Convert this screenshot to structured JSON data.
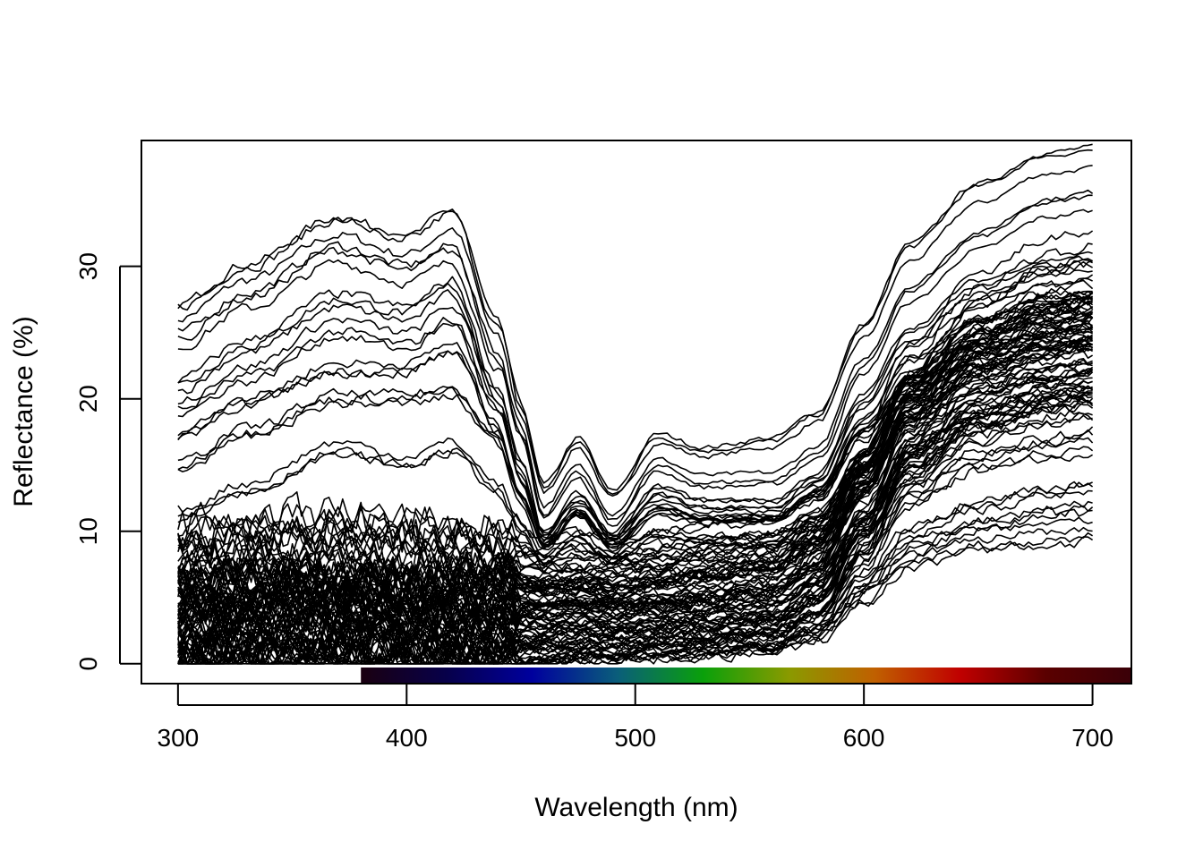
{
  "chart_data": {
    "type": "line",
    "title": "",
    "xlabel": "Wavelength (nm)",
    "ylabel": "Reflectance (%)",
    "xlim": [
      284,
      717
    ],
    "ylim": [
      -1.5,
      39.5
    ],
    "x_ticks": [
      300,
      400,
      500,
      600,
      700
    ],
    "y_ticks": [
      0,
      10,
      20,
      30
    ],
    "x_tick_labels": [
      "300",
      "400",
      "500",
      "600",
      "700"
    ],
    "y_tick_labels": [
      "0",
      "10",
      "20",
      "30"
    ],
    "x_range": [
      300,
      700
    ],
    "grid": false,
    "legend": "none",
    "line_color": "#000000",
    "spectrum_bar": {
      "range_nm": [
        380,
        717
      ],
      "colors": [
        "#1a0010",
        "#07004a",
        "#00009e",
        "#0a5e7a",
        "#0aa00a",
        "#8a9a00",
        "#c06000",
        "#c00000",
        "#5a0000",
        "#3a0008"
      ]
    },
    "series_groups": [
      {
        "description_anchor_x": [
          300,
          330,
          370,
          400,
          420,
          440,
          450,
          460,
          475,
          490,
          510,
          530,
          560,
          580,
          600,
          620,
          650,
          680,
          700
        ],
        "profile": "high-UV",
        "base_values": [
          [
            26.5,
            29.5,
            33.0,
            31.5,
            33.5,
            25.0,
            19.0,
            13.0,
            16.5,
            12.5,
            16.8,
            15.8,
            16.5,
            18.5,
            25.0,
            31.0,
            35.5,
            37.8,
            38.2
          ],
          [
            24.5,
            27.5,
            31.0,
            29.5,
            31.0,
            23.0,
            17.5,
            11.5,
            14.5,
            11.0,
            15.0,
            13.8,
            14.0,
            16.0,
            22.5,
            28.0,
            32.0,
            34.5,
            35.0
          ],
          [
            21.5,
            24.5,
            28.0,
            27.0,
            29.0,
            21.0,
            15.5,
            10.0,
            13.0,
            10.0,
            13.5,
            12.5,
            12.5,
            14.5,
            20.5,
            25.5,
            29.0,
            30.5,
            31.0
          ],
          [
            19.5,
            22.0,
            25.5,
            24.5,
            26.5,
            19.5,
            14.0,
            9.5,
            12.0,
            9.5,
            12.5,
            11.5,
            11.5,
            13.5,
            19.0,
            23.5,
            26.5,
            28.0,
            28.5
          ],
          [
            17.5,
            20.0,
            22.5,
            22.5,
            24.0,
            18.0,
            13.0,
            9.0,
            11.5,
            9.0,
            12.0,
            11.0,
            11.0,
            13.0,
            18.0,
            22.0,
            24.5,
            25.5,
            26.0
          ],
          [
            14.5,
            17.0,
            19.5,
            19.5,
            20.0,
            16.5,
            12.0,
            8.5,
            11.0,
            8.5,
            11.0,
            10.5,
            10.5,
            12.5,
            17.0,
            20.5,
            22.5,
            23.5,
            24.0
          ],
          [
            11.5,
            13.5,
            16.5,
            15.5,
            16.5,
            13.5,
            10.5,
            8.0,
            10.0,
            8.0,
            10.0,
            9.5,
            9.5,
            11.5,
            15.5,
            19.0,
            21.0,
            22.0,
            22.5
          ]
        ]
      },
      {
        "profile": "flat-UV",
        "base_values": [
          [
            9.5,
            10.0,
            10.5,
            10.0,
            9.5,
            9.5,
            9.0,
            8.5,
            9.0,
            8.5,
            9.0,
            9.5,
            10.0,
            11.5,
            16.0,
            22.0,
            27.0,
            29.5,
            30.0
          ],
          [
            9.0,
            9.5,
            10.0,
            9.5,
            9.0,
            9.0,
            8.5,
            8.0,
            8.5,
            8.0,
            8.5,
            9.0,
            9.5,
            11.0,
            15.5,
            21.0,
            26.0,
            28.5,
            29.0
          ],
          [
            7.5,
            8.0,
            8.0,
            7.5,
            7.5,
            7.5,
            7.0,
            7.0,
            7.0,
            7.0,
            7.5,
            8.0,
            8.5,
            10.5,
            15.0,
            20.5,
            25.0,
            27.0,
            27.5
          ],
          [
            6.5,
            6.5,
            6.8,
            6.5,
            6.5,
            6.5,
            6.0,
            6.0,
            6.2,
            6.0,
            6.5,
            7.0,
            7.5,
            9.5,
            14.5,
            20.0,
            24.0,
            26.0,
            26.5
          ],
          [
            6.0,
            6.2,
            6.5,
            6.0,
            6.0,
            6.0,
            5.8,
            5.5,
            5.8,
            5.5,
            6.0,
            6.5,
            7.0,
            9.0,
            14.0,
            19.5,
            23.5,
            25.0,
            25.5
          ],
          [
            5.5,
            5.5,
            5.8,
            5.5,
            5.5,
            5.5,
            5.2,
            5.0,
            5.2,
            5.0,
            5.5,
            6.0,
            6.5,
            8.5,
            13.5,
            19.0,
            22.5,
            24.0,
            24.5
          ],
          [
            5.0,
            5.0,
            5.2,
            5.0,
            5.0,
            5.0,
            4.8,
            4.8,
            5.0,
            4.8,
            5.0,
            5.5,
            6.0,
            8.0,
            13.0,
            18.5,
            22.0,
            23.5,
            24.0
          ],
          [
            4.5,
            4.6,
            4.8,
            4.5,
            4.5,
            4.5,
            4.4,
            4.2,
            4.5,
            4.3,
            4.5,
            5.0,
            5.5,
            7.5,
            12.5,
            18.0,
            21.5,
            23.0,
            23.5
          ],
          [
            4.0,
            4.2,
            4.5,
            4.2,
            4.0,
            4.0,
            4.0,
            4.0,
            4.2,
            4.0,
            4.2,
            4.5,
            5.0,
            7.0,
            12.0,
            17.5,
            21.0,
            22.5,
            23.0
          ],
          [
            3.5,
            3.8,
            4.0,
            3.8,
            3.6,
            3.6,
            3.6,
            3.5,
            3.8,
            3.6,
            3.8,
            4.0,
            4.5,
            6.5,
            11.5,
            17.0,
            20.5,
            22.0,
            22.5
          ],
          [
            3.0,
            3.2,
            3.5,
            3.2,
            3.2,
            3.2,
            3.2,
            3.2,
            3.4,
            3.2,
            3.4,
            3.6,
            4.0,
            6.0,
            11.0,
            16.5,
            20.0,
            21.5,
            22.0
          ],
          [
            2.5,
            2.8,
            3.0,
            2.8,
            2.8,
            2.8,
            2.8,
            2.8,
            3.0,
            2.8,
            3.0,
            3.2,
            3.6,
            5.5,
            10.5,
            16.0,
            19.5,
            21.0,
            21.5
          ],
          [
            2.0,
            2.2,
            2.5,
            2.2,
            2.2,
            2.2,
            2.2,
            2.2,
            2.4,
            2.2,
            2.5,
            2.8,
            3.2,
            5.0,
            10.0,
            15.5,
            19.0,
            20.5,
            21.0
          ],
          [
            1.5,
            1.8,
            2.0,
            1.8,
            1.8,
            1.8,
            1.8,
            1.8,
            2.0,
            1.8,
            2.0,
            2.4,
            2.8,
            4.5,
            9.5,
            15.0,
            18.5,
            20.0,
            20.5
          ],
          [
            1.0,
            1.2,
            1.5,
            1.2,
            1.2,
            1.2,
            1.2,
            1.4,
            1.6,
            1.5,
            1.8,
            2.0,
            2.4,
            4.0,
            9.0,
            14.5,
            18.0,
            19.5,
            20.0
          ],
          [
            0.5,
            0.8,
            1.0,
            0.8,
            0.8,
            0.8,
            0.8,
            1.0,
            1.2,
            1.2,
            1.4,
            1.6,
            2.0,
            3.5,
            8.0,
            13.0,
            16.0,
            17.0,
            17.5
          ],
          [
            0.2,
            0.4,
            0.5,
            0.4,
            0.4,
            0.4,
            0.5,
            0.8,
            1.0,
            1.0,
            1.2,
            1.4,
            1.8,
            3.0,
            6.5,
            10.0,
            12.0,
            13.0,
            13.5
          ],
          [
            0.0,
            0.2,
            0.3,
            0.2,
            0.2,
            0.2,
            0.3,
            0.5,
            0.8,
            0.8,
            1.0,
            1.2,
            1.5,
            2.5,
            5.5,
            8.5,
            10.0,
            10.5,
            10.8
          ]
        ]
      }
    ]
  }
}
